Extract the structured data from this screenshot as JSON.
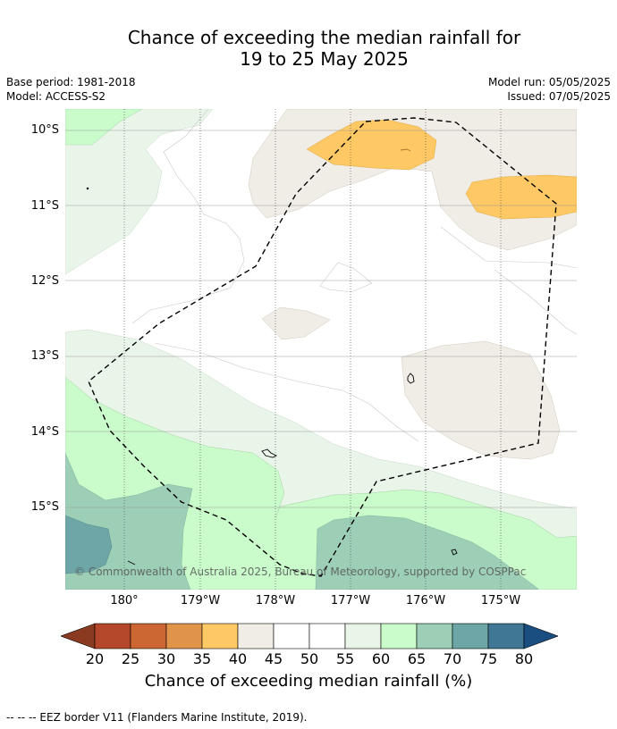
{
  "title_line1": "Chance of exceeding the median rainfall for",
  "title_line2": "19 to 25 May 2025",
  "meta": {
    "base_period": "Base period: 1981-2018",
    "model": "Model: ACCESS-S2",
    "model_run": "Model run: 05/05/2025",
    "issued": "Issued: 07/05/2025"
  },
  "latitude_labels": [
    "10°S",
    "11°S",
    "12°S",
    "13°S",
    "14°S",
    "15°S"
  ],
  "longitude_labels": [
    "180°",
    "179°W",
    "178°W",
    "177°W",
    "176°W",
    "175°W"
  ],
  "copyright": "© Commonwealth of Australia 2025, Bureau of Meteorology, supported by COSPPac",
  "colorbar": {
    "ticks": [
      "20",
      "25",
      "30",
      "35",
      "40",
      "45",
      "50",
      "55",
      "60",
      "65",
      "70",
      "75",
      "80"
    ],
    "colors": [
      "#8b3a22",
      "#b5472a",
      "#cc6633",
      "#e0944a",
      "#fec965",
      "#f0ece6",
      "#ffffff",
      "#ffffff",
      "#eaf5ea",
      "#c9fcca",
      "#9ccfb6",
      "#6ea5a6",
      "#3f7795",
      "#1a4e80"
    ],
    "label": "Chance of exceeding median rainfall (%)"
  },
  "footnote": "--  --  -- EEZ border V11 (Flanders Marine Institute, 2019)."
}
